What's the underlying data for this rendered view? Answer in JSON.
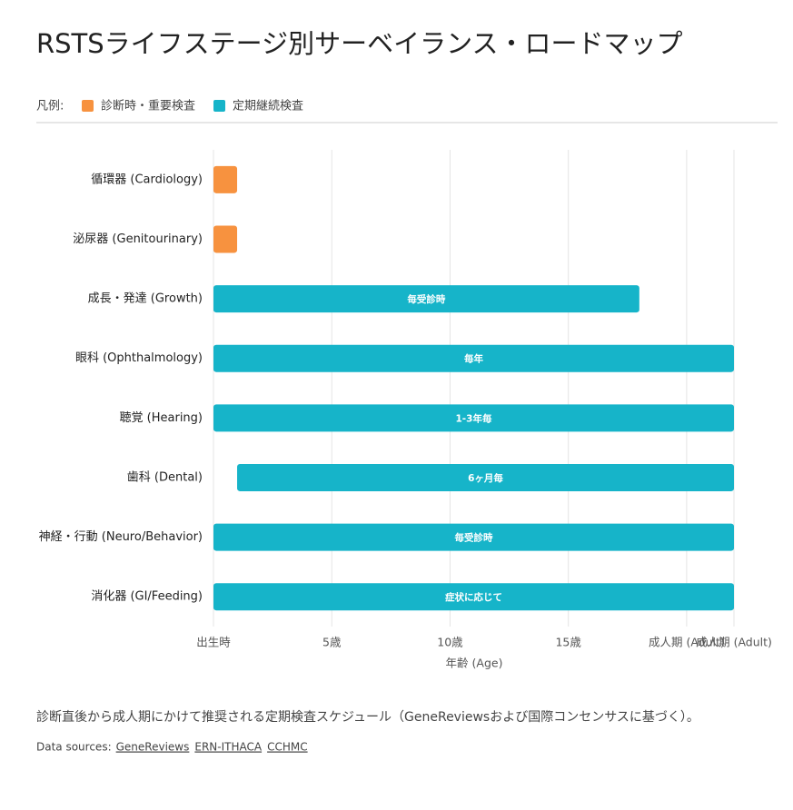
{
  "chart_data": {
    "type": "range-bar",
    "title": "RSTSライフステージ別サーベイランス・ロードマップ",
    "legend_label": "凡例:",
    "categories": [
      "循環器 (Cardiology)",
      "泌尿器 (Genitourinary)",
      "成長・発達 (Growth)",
      "眼科 (Ophthalmology)",
      "聴覚 (Hearing)",
      "歯科 (Dental)",
      "神経・行動 (Neuro/Behavior)",
      "消化器 (GI/Feeding)"
    ],
    "series": [
      {
        "name": "診断時・重要検査",
        "color": "#f7923f",
        "start": [
          0,
          0,
          null,
          null,
          null,
          null,
          null,
          null
        ],
        "end": [
          1,
          1,
          null,
          null,
          null,
          null,
          null,
          null
        ]
      },
      {
        "name": "定期継続検査",
        "color": "#16b4c9",
        "start": [
          null,
          null,
          0,
          0,
          0,
          1,
          0,
          0
        ],
        "end": [
          null,
          null,
          18,
          22,
          22,
          22,
          22,
          22
        ],
        "value_labels": [
          null,
          null,
          "毎受診時",
          "毎年",
          "1-3年毎",
          "6ヶ月毎",
          "毎受診時",
          "症状に応じて"
        ]
      }
    ],
    "xlim": [
      0,
      22
    ],
    "xticks": [
      {
        "value": 0,
        "label": "出生時"
      },
      {
        "value": 5,
        "label": "5歳"
      },
      {
        "value": 10,
        "label": "10歳"
      },
      {
        "value": 15,
        "label": "15歳"
      },
      {
        "value": 20,
        "label": "成人期 (Adult)"
      },
      {
        "value": 22,
        "label": "成人期 (Adult)"
      }
    ],
    "xlabel": "年齢 (Age)",
    "grid": true,
    "caption": "診断直後から成人期にかけて推奨される定期検査スケジュール（GeneReviewsおよび国際コンセンサスに基づく）。",
    "sources_label": "Data sources:",
    "sources": [
      "GeneReviews",
      "ERN-ITHACA",
      "CCHMC"
    ]
  }
}
